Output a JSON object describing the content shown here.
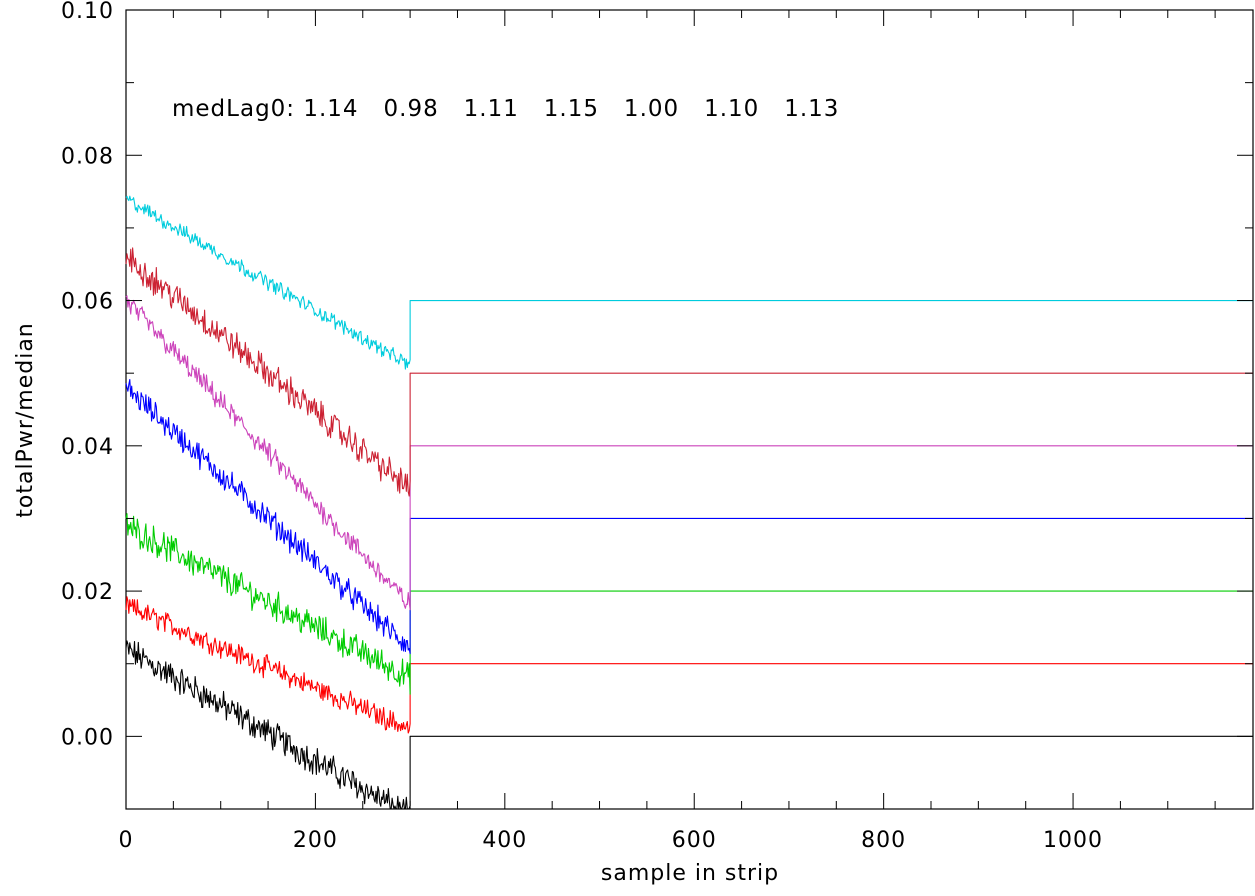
{
  "chart_data": {
    "type": "line",
    "title": "",
    "xlabel": "sample in strip",
    "ylabel": "totalPwr/median",
    "xlim": [
      0,
      1190
    ],
    "ylim": [
      -0.01,
      0.1
    ],
    "x_ticks": [
      0,
      200,
      400,
      600,
      800,
      1000
    ],
    "x_tick_labels": [
      "0",
      "200",
      "400",
      "600",
      "800",
      "1000"
    ],
    "y_ticks": [
      0.0,
      0.02,
      0.04,
      0.06,
      0.08,
      0.1
    ],
    "y_tick_labels": [
      "0.00",
      "0.02",
      "0.04",
      "0.06",
      "0.08",
      "0.10"
    ],
    "grid": false,
    "legend": "none",
    "annotation": "medLag0: 1.14   0.98   1.11   1.15   1.00   1.10   1.13",
    "step_x": 300,
    "series": [
      {
        "color": "#000000",
        "noisy_start": 0.012,
        "noisy_end": -0.011,
        "flat_value": 0.0,
        "noise": 0.0016
      },
      {
        "color": "#ff0000",
        "noisy_start": 0.018,
        "noisy_end": 0.001,
        "flat_value": 0.01,
        "noise": 0.0012
      },
      {
        "color": "#00cc00",
        "noisy_start": 0.029,
        "noisy_end": 0.008,
        "flat_value": 0.02,
        "noise": 0.0016
      },
      {
        "color": "#0000ff",
        "noisy_start": 0.048,
        "noisy_end": 0.012,
        "flat_value": 0.03,
        "noise": 0.0014
      },
      {
        "color": "#cc44bb",
        "noisy_start": 0.06,
        "noisy_end": 0.018,
        "flat_value": 0.04,
        "noise": 0.0012
      },
      {
        "color": "#cc2233",
        "noisy_start": 0.066,
        "noisy_end": 0.034,
        "flat_value": 0.05,
        "noise": 0.0016
      },
      {
        "color": "#00ccdd",
        "noisy_start": 0.074,
        "noisy_end": 0.051,
        "flat_value": 0.06,
        "noise": 0.0008
      }
    ]
  }
}
